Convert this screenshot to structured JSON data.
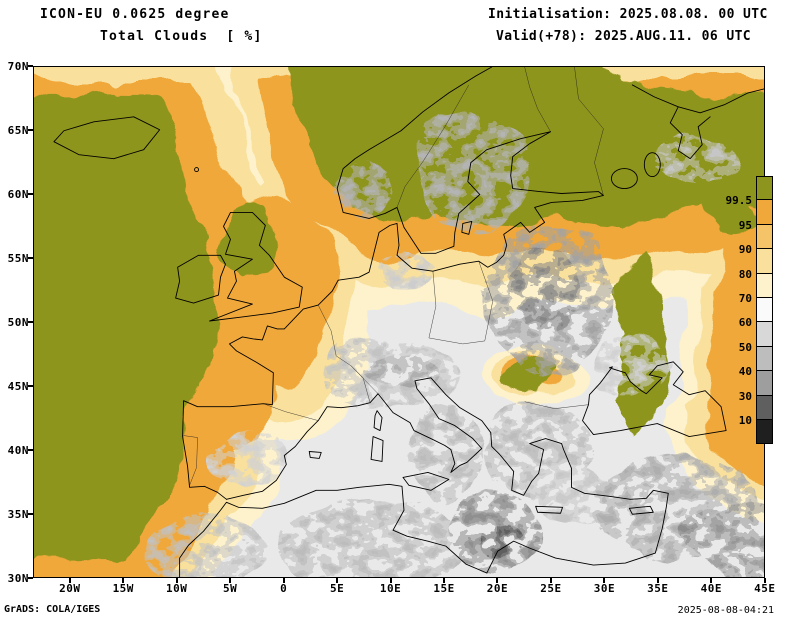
{
  "header": {
    "model": "ICON-EU 0.0625 degree",
    "field": "Total Clouds  [ %]",
    "init": "Initialisation: 2025.08.08. 00 UTC",
    "valid": "Valid(+78): 2025.AUG.11. 06 UTC"
  },
  "axes": {
    "lon_ticks": [
      "20W",
      "15W",
      "10W",
      "5W",
      "0",
      "5E",
      "10E",
      "15E",
      "20E",
      "25E",
      "30E",
      "35E",
      "40E",
      "45E"
    ],
    "lat_ticks": [
      "70N",
      "65N",
      "60N",
      "55N",
      "50N",
      "45N",
      "40N",
      "35N",
      "30N"
    ]
  },
  "colorbar": {
    "title": "%",
    "labels": [
      "99.5",
      "95",
      "90",
      "80",
      "70",
      "60",
      "50",
      "40",
      "30",
      "10"
    ],
    "colors": [
      "#8e951f",
      "#f0a83a",
      "#f5c468",
      "#f9e09c",
      "#fdf2cc",
      "#fafafa",
      "#d8d8d8",
      "#bdbdbd",
      "#9e9e9e",
      "#5f5f5f",
      "#1f1f1f"
    ]
  },
  "map_colors": {
    "overcast_olive": "#8e951f",
    "orange": "#f0a83a",
    "light_orange": "#f6c66d",
    "pale_yellow": "#f9e09c",
    "cream": "#fdf2cc",
    "clear_gray": "#e9e9e9"
  },
  "footer": {
    "credit": "GrADS: COLA/IGES",
    "timestamp": "2025-08-08-04:21"
  }
}
